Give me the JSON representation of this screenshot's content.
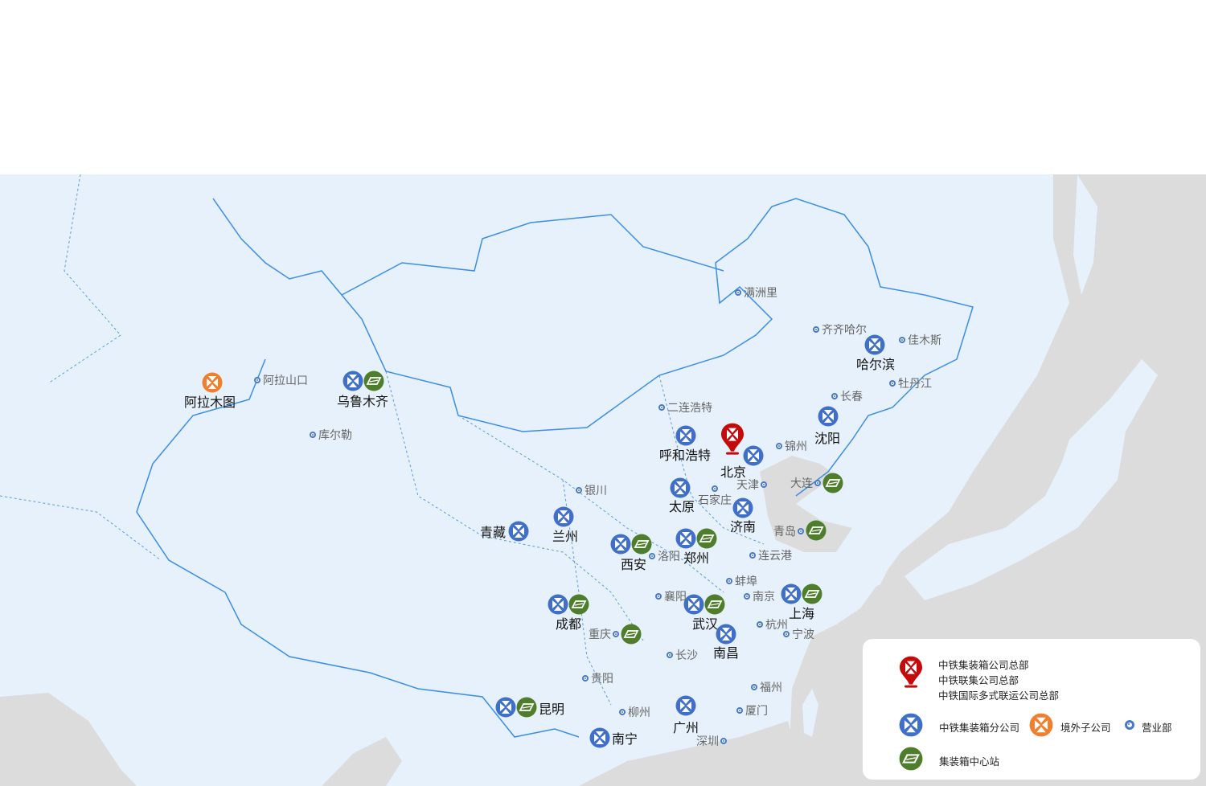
{
  "colors": {
    "branch": "#3f6fc8",
    "overseas": "#ef7f2e",
    "center": "#4e7d2b",
    "hq": "#c40a0a",
    "land": "#e7f1fb",
    "sea": "#dcdcdc",
    "border": "#3a8ee6"
  },
  "markers": [
    {
      "name": "阿拉木图",
      "icons": [
        "overseas"
      ]
    },
    {
      "name": "乌鲁木齐",
      "icons": [
        "branch",
        "center"
      ]
    },
    {
      "name": "哈尔滨",
      "icons": [
        "branch"
      ]
    },
    {
      "name": "沈阳",
      "icons": [
        "branch"
      ]
    },
    {
      "name": "呼和浩特",
      "icons": [
        "branch"
      ]
    },
    {
      "name": "北京",
      "icons": [
        "hq",
        "branch"
      ]
    },
    {
      "name": "太原",
      "icons": [
        "branch"
      ]
    },
    {
      "name": "济南",
      "icons": [
        "branch"
      ]
    },
    {
      "name": "青藏",
      "icons": [
        "branch"
      ]
    },
    {
      "name": "兰州",
      "icons": [
        "branch"
      ]
    },
    {
      "name": "西安",
      "icons": [
        "branch",
        "center"
      ]
    },
    {
      "name": "郑州",
      "icons": [
        "branch",
        "center"
      ]
    },
    {
      "name": "成都",
      "icons": [
        "branch",
        "center"
      ]
    },
    {
      "name": "武汉",
      "icons": [
        "branch",
        "center"
      ]
    },
    {
      "name": "上海",
      "icons": [
        "branch",
        "center"
      ]
    },
    {
      "name": "南昌",
      "icons": [
        "branch"
      ]
    },
    {
      "name": "昆明",
      "icons": [
        "branch",
        "center"
      ]
    },
    {
      "name": "南宁",
      "icons": [
        "branch"
      ]
    },
    {
      "name": "广州",
      "icons": [
        "branch"
      ]
    }
  ],
  "offices": [
    "满洲里",
    "齐齐哈尔",
    "佳木斯",
    "牡丹江",
    "长春",
    "二连浩特",
    "阿拉山口",
    "库尔勒",
    "锦州",
    "天津",
    "大连",
    "石家庄",
    "银川",
    "青岛",
    "洛阳",
    "连云港",
    "蚌埠",
    "襄阳",
    "南京",
    "杭州",
    "宁波",
    "重庆",
    "长沙",
    "贵阳",
    "福州",
    "厦门",
    "柳州",
    "深圳"
  ],
  "centers_with_office": [
    "大连",
    "青岛",
    "重庆"
  ],
  "legend": {
    "hq_lines": [
      "中铁集装箱公司总部",
      "中铁联集公司总部",
      "中铁国际多式联运公司总部"
    ],
    "branch": "中铁集装箱分公司",
    "overseas": "境外子公司",
    "office": "营业部",
    "center": "集装箱中心站"
  }
}
